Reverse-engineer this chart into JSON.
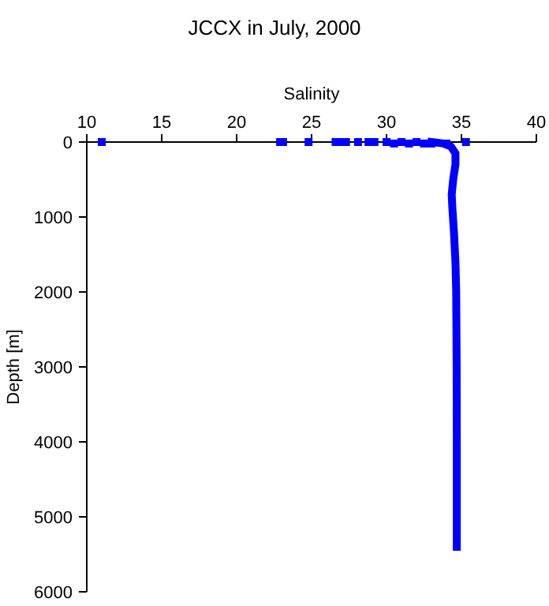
{
  "chart_data": {
    "type": "scatter",
    "title": "JCCX in July, 2000",
    "xlabel": "Salinity",
    "ylabel": "Depth [m]",
    "xlim": [
      10,
      40
    ],
    "xticks": [
      10,
      15,
      20,
      25,
      30,
      35,
      40
    ],
    "ylim": [
      6000,
      0
    ],
    "yticks": [
      0,
      1000,
      2000,
      3000,
      4000,
      5000,
      6000
    ],
    "grid": false,
    "series": [
      {
        "type": "line",
        "color": "#0000ff",
        "marker": "none",
        "x": [
          33.0,
          33.8,
          34.3,
          34.6,
          34.6,
          34.45,
          34.35,
          34.4,
          34.5,
          34.6,
          34.65,
          34.68,
          34.69,
          34.69,
          34.69
        ],
        "values": [
          0,
          20,
          60,
          150,
          300,
          500,
          700,
          900,
          1200,
          1600,
          2000,
          3000,
          4000,
          5000,
          5400
        ]
      },
      {
        "color": "#0000ff",
        "marker": "square",
        "x": [
          11,
          22.9,
          23.1,
          24.8,
          26.6,
          26.9,
          27.3,
          28.1,
          28.8,
          29.2,
          30,
          30.5,
          31,
          31.5,
          32,
          32.5,
          33,
          34,
          35.3
        ],
        "values": [
          0,
          0,
          0,
          0,
          0,
          0,
          0,
          0,
          0,
          0,
          0,
          20,
          0,
          20,
          0,
          20,
          20,
          20,
          0
        ]
      }
    ]
  }
}
